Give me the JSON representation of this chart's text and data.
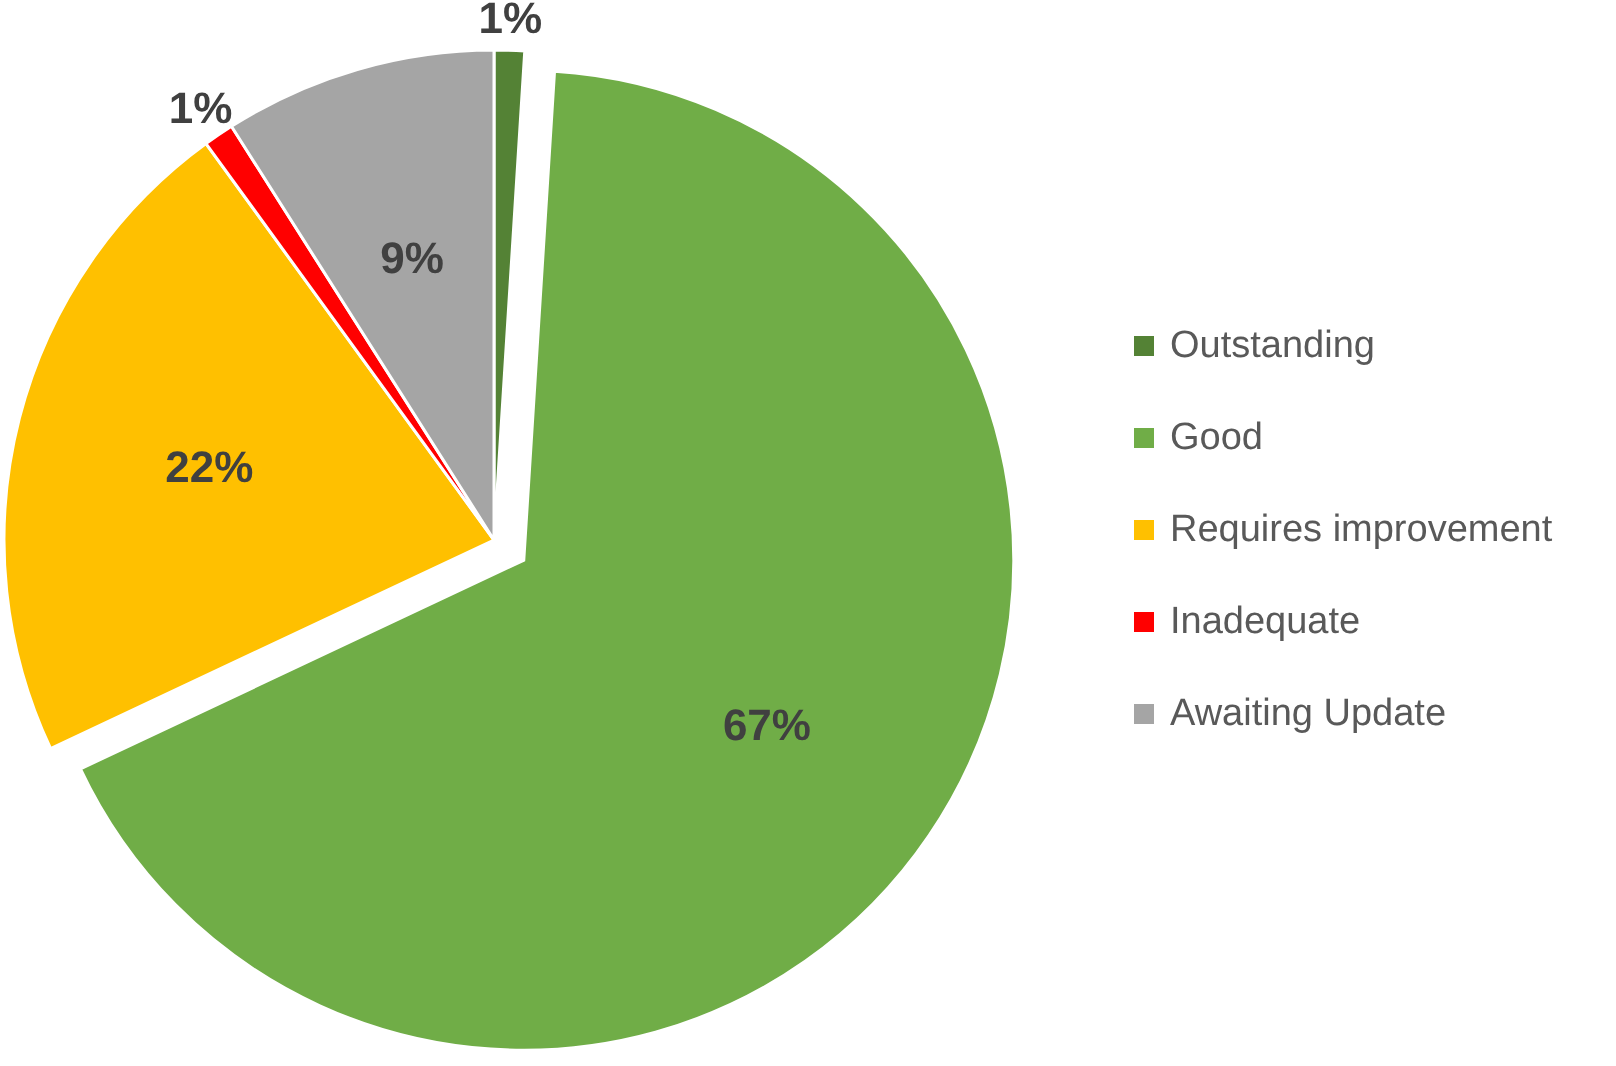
{
  "chart_data": {
    "type": "pie",
    "categories": [
      "Outstanding",
      "Good",
      "Requires improvement",
      "Inadequate",
      "Awaiting Update"
    ],
    "values": [
      1,
      67,
      22,
      1,
      9
    ],
    "colors": [
      "#548235",
      "#70ad47",
      "#ffc000",
      "#ff0000",
      "#a5a5a5"
    ],
    "value_labels": [
      "1%",
      "67%",
      "22%",
      "1%",
      "9%"
    ],
    "legend": "right"
  }
}
